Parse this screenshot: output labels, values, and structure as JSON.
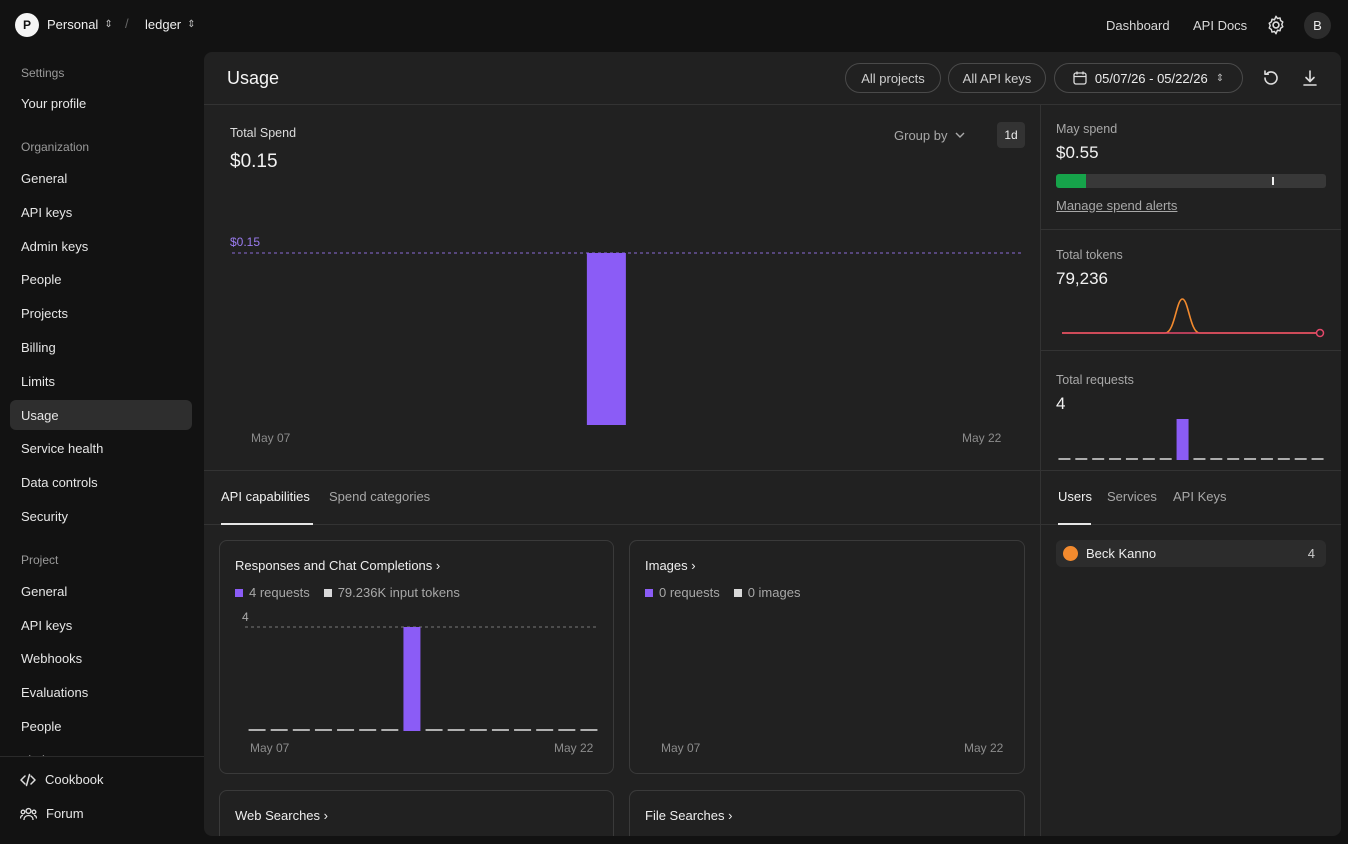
{
  "topbar": {
    "workspace_initial": "P",
    "workspace": "Personal",
    "project": "ledger",
    "separator": "/",
    "links": [
      "Dashboard",
      "API Docs"
    ],
    "user_initial": "B"
  },
  "sidebar": {
    "settings_label": "Settings",
    "profile": "Your profile",
    "org_label": "Organization",
    "org_items": [
      "General",
      "API keys",
      "Admin keys",
      "People",
      "Projects",
      "Billing",
      "Limits",
      "Usage",
      "Service health",
      "Data controls",
      "Security"
    ],
    "active_item": "Usage",
    "project_label": "Project",
    "project_items": [
      "General",
      "API keys",
      "Webhooks",
      "Evaluations",
      "People",
      "Limits"
    ],
    "bottom": [
      "Cookbook",
      "Forum"
    ]
  },
  "header": {
    "title": "Usage",
    "filters": [
      "All projects",
      "All API keys"
    ],
    "date_range": "05/07/26 - 05/22/26"
  },
  "spend": {
    "label": "Total Spend",
    "value": "$0.15",
    "group_by": "Group by",
    "interval": "1d",
    "max_label": "$0.15",
    "start_date": "May 07",
    "end_date": "May 22"
  },
  "chart_data": [
    {
      "type": "bar",
      "title": "Total Spend",
      "categories": [
        "May 07",
        "May 08",
        "May 09",
        "May 10",
        "May 11",
        "May 12",
        "May 13",
        "May 14",
        "May 15",
        "May 16",
        "May 17",
        "May 18",
        "May 19",
        "May 20",
        "May 21",
        "May 22"
      ],
      "values": [
        0,
        0,
        0,
        0,
        0,
        0,
        0,
        0.15,
        0,
        0,
        0,
        0,
        0,
        0,
        0,
        0
      ],
      "ylim": [
        0,
        0.15
      ],
      "color": "#8b5cf6"
    },
    {
      "type": "bar",
      "title": "Responses and Chat Completions",
      "categories": [
        "May 07",
        "May 08",
        "May 09",
        "May 10",
        "May 11",
        "May 12",
        "May 13",
        "May 14",
        "May 15",
        "May 16",
        "May 17",
        "May 18",
        "May 19",
        "May 20",
        "May 21",
        "May 22"
      ],
      "values": [
        0,
        0,
        0,
        0,
        0,
        0,
        0,
        4,
        0,
        0,
        0,
        0,
        0,
        0,
        0,
        0
      ],
      "ylim": [
        0,
        4
      ],
      "color": "#8b5cf6"
    },
    {
      "type": "bar",
      "title": "Total requests",
      "categories": [
        "May 07",
        "May 08",
        "May 09",
        "May 10",
        "May 11",
        "May 12",
        "May 13",
        "May 14",
        "May 15",
        "May 16",
        "May 17",
        "May 18",
        "May 19",
        "May 20",
        "May 21",
        "May 22"
      ],
      "values": [
        0,
        0,
        0,
        0,
        0,
        0,
        0,
        4,
        0,
        0,
        0,
        0,
        0,
        0,
        0,
        0
      ],
      "ylim": [
        0,
        4
      ],
      "color": "#8b5cf6"
    },
    {
      "type": "line",
      "title": "Total tokens",
      "categories": [
        "May 07",
        "May 08",
        "May 09",
        "May 10",
        "May 11",
        "May 12",
        "May 13",
        "May 14",
        "May 15",
        "May 16",
        "May 17",
        "May 18",
        "May 19",
        "May 20",
        "May 21",
        "May 22"
      ],
      "series": [
        {
          "values": [
            0,
            0,
            0,
            0,
            0,
            0,
            0,
            79236,
            0,
            0,
            0,
            0,
            0,
            0,
            0,
            0
          ],
          "color": "#f28a2e"
        },
        {
          "values": [
            0,
            0,
            0,
            0,
            0,
            0,
            0,
            0,
            0,
            0,
            0,
            0,
            0,
            0,
            0,
            0
          ],
          "color": "#e5486a"
        }
      ]
    }
  ],
  "may_spend": {
    "label": "May spend",
    "value": "$0.55",
    "progress_fraction": 0.11,
    "marker_fraction": 0.8,
    "bar_color": "#16a34a",
    "link": "Manage spend alerts"
  },
  "tokens": {
    "label": "Total tokens",
    "value": "79,236"
  },
  "requests": {
    "label": "Total requests",
    "value": "4"
  },
  "capability_tabs": [
    "API capabilities",
    "Spend categories"
  ],
  "breakdown_tabs": [
    "Users",
    "Services",
    "API Keys"
  ],
  "cards": {
    "responses": {
      "title": "Responses and Chat Completions",
      "legend1": "4 requests",
      "legend2": "79.236K input tokens",
      "max_label": "4",
      "start": "May 07",
      "end": "May 22"
    },
    "images": {
      "title": "Images",
      "legend1": "0 requests",
      "legend2": "0 images",
      "start": "May 07",
      "end": "May 22"
    },
    "web": {
      "title": "Web Searches"
    },
    "files": {
      "title": "File Searches"
    }
  },
  "users": [
    {
      "name": "Beck Kanno",
      "count": "4",
      "avatar_color": "#f28a2e"
    }
  ],
  "colors": {
    "accent": "#8b5cf6",
    "neutral_swatch": "#d9d9d9"
  }
}
